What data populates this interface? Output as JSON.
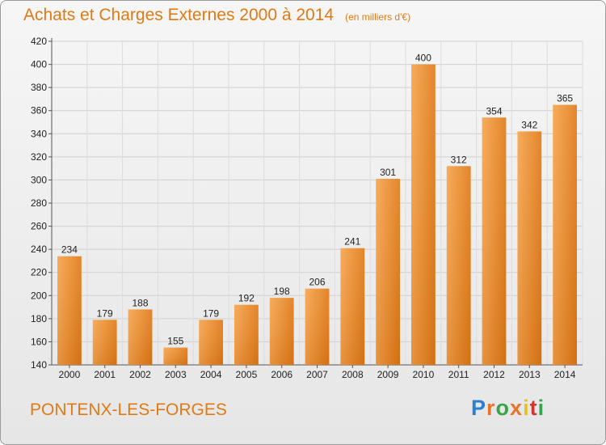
{
  "chart_data": {
    "type": "bar",
    "title": "Achats et Charges Externes 2000 à 2014",
    "subtitle": "(en milliers d'€)",
    "categories": [
      "2000",
      "2001",
      "2002",
      "2003",
      "2004",
      "2005",
      "2006",
      "2007",
      "2008",
      "2009",
      "2010",
      "2011",
      "2012",
      "2013",
      "2014"
    ],
    "values": [
      234,
      179,
      188,
      155,
      179,
      192,
      198,
      206,
      241,
      301,
      400,
      312,
      354,
      342,
      365
    ],
    "ylim": [
      140,
      420
    ],
    "yticks": [
      140,
      160,
      180,
      200,
      220,
      240,
      260,
      280,
      300,
      320,
      340,
      360,
      380,
      400,
      420
    ],
    "grid": true,
    "bar_color": "#f08a24",
    "xlabel": "",
    "ylabel": ""
  },
  "location": "PONTENX-LES-FORGES",
  "brand": {
    "text": "Proxiti",
    "letters": [
      "P",
      "r",
      "o",
      "x",
      "i",
      "t",
      "i"
    ]
  }
}
